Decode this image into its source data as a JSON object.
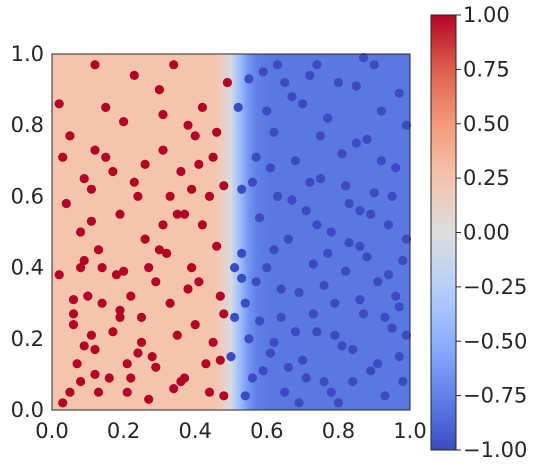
{
  "chart_data": {
    "type": "scatter",
    "title": "",
    "xlabel": "",
    "ylabel": "",
    "xlim": [
      0,
      1
    ],
    "ylim": [
      0,
      1
    ],
    "x_ticks": [
      "0.0",
      "0.2",
      "0.4",
      "0.6",
      "0.8",
      "1.0"
    ],
    "y_ticks": [
      "0.0",
      "0.2",
      "0.4",
      "0.6",
      "0.8",
      "1.0"
    ],
    "tick_values": [
      0,
      0.2,
      0.4,
      0.6,
      0.8,
      1.0
    ],
    "grid": false,
    "background": {
      "kind": "decision-function",
      "boundary_x": 0.5,
      "left_value": 0.25,
      "right_value": -0.8
    },
    "colorbar": {
      "colormap": "coolwarm",
      "min": -1.0,
      "max": 1.0,
      "ticks": [
        "1.00",
        "0.75",
        "0.50",
        "0.25",
        "0.00",
        "−0.25",
        "−0.50",
        "−0.75",
        "−1.00"
      ],
      "tick_values": [
        1.0,
        0.75,
        0.5,
        0.25,
        0.0,
        -0.25,
        -0.5,
        -0.75,
        -1.0
      ]
    },
    "colors": {
      "class_positive": "#b40426",
      "class_negative": "#3b4cc0",
      "background_left": "#f4c5ad",
      "background_right": "#5b7be2",
      "boundary": "#dddddd"
    },
    "series": [
      {
        "label": "1",
        "points": [
          [
            0.02,
            0.86
          ],
          [
            0.03,
            0.71
          ],
          [
            0.05,
            0.05
          ],
          [
            0.06,
            0.31
          ],
          [
            0.06,
            0.24
          ],
          [
            0.08,
            0.5
          ],
          [
            0.08,
            0.08
          ],
          [
            0.08,
            0.4
          ],
          [
            0.09,
            0.42
          ],
          [
            0.09,
            0.65
          ],
          [
            0.11,
            0.53
          ],
          [
            0.11,
            0.21
          ],
          [
            0.12,
            0.97
          ],
          [
            0.12,
            0.17
          ],
          [
            0.12,
            0.1
          ],
          [
            0.13,
            0.05
          ],
          [
            0.14,
            0.4
          ],
          [
            0.15,
            0.85
          ],
          [
            0.17,
            0.67
          ],
          [
            0.19,
            0.28
          ],
          [
            0.19,
            0.26
          ],
          [
            0.2,
            0.39
          ],
          [
            0.21,
            0.05
          ],
          [
            0.22,
            0.09
          ],
          [
            0.23,
            0.64
          ],
          [
            0.24,
            0.6
          ],
          [
            0.25,
            0.19
          ],
          [
            0.26,
            0.48
          ],
          [
            0.27,
            0.03
          ],
          [
            0.28,
            0.15
          ],
          [
            0.29,
            0.12
          ],
          [
            0.3,
            0.9
          ],
          [
            0.31,
            0.73
          ],
          [
            0.31,
            0.52
          ],
          [
            0.32,
            0.44
          ],
          [
            0.33,
            0.3
          ],
          [
            0.34,
            0.06
          ],
          [
            0.35,
            0.21
          ],
          [
            0.36,
            0.67
          ],
          [
            0.37,
            0.55
          ],
          [
            0.38,
            0.8
          ],
          [
            0.39,
            0.4
          ],
          [
            0.4,
            0.24
          ],
          [
            0.41,
            0.69
          ],
          [
            0.42,
            0.85
          ],
          [
            0.43,
            0.13
          ],
          [
            0.44,
            0.6
          ],
          [
            0.46,
            0.46
          ],
          [
            0.46,
            0.78
          ],
          [
            0.47,
            0.32
          ],
          [
            0.48,
            0.04
          ],
          [
            0.49,
            0.92
          ],
          [
            0.2,
            0.81
          ],
          [
            0.22,
            0.32
          ],
          [
            0.15,
            0.71
          ],
          [
            0.04,
            0.58
          ],
          [
            0.17,
            0.22
          ],
          [
            0.23,
            0.94
          ],
          [
            0.27,
            0.4
          ],
          [
            0.33,
            0.6
          ],
          [
            0.37,
            0.09
          ],
          [
            0.41,
            0.36
          ],
          [
            0.45,
            0.19
          ],
          [
            0.13,
            0.45
          ],
          [
            0.07,
            0.13
          ],
          [
            0.1,
            0.32
          ],
          [
            0.16,
            0.09
          ],
          [
            0.24,
            0.16
          ],
          [
            0.29,
            0.36
          ],
          [
            0.35,
            0.55
          ],
          [
            0.42,
            0.52
          ],
          [
            0.48,
            0.27
          ],
          [
            0.05,
            0.77
          ],
          [
            0.11,
            0.62
          ],
          [
            0.18,
            0.38
          ],
          [
            0.26,
            0.69
          ],
          [
            0.31,
            0.83
          ],
          [
            0.38,
            0.34
          ],
          [
            0.44,
            0.05
          ],
          [
            0.47,
            0.14
          ],
          [
            0.02,
            0.38
          ],
          [
            0.06,
            0.27
          ],
          [
            0.09,
            0.18
          ],
          [
            0.14,
            0.3
          ],
          [
            0.19,
            0.55
          ],
          [
            0.25,
            0.26
          ],
          [
            0.3,
            0.45
          ],
          [
            0.36,
            0.08
          ],
          [
            0.4,
            0.77
          ],
          [
            0.45,
            0.71
          ],
          [
            0.48,
            0.63
          ],
          [
            0.03,
            0.02
          ],
          [
            0.12,
            0.73
          ],
          [
            0.21,
            0.13
          ],
          [
            0.34,
            0.97
          ],
          [
            0.39,
            0.62
          ]
        ]
      },
      {
        "label": "-1",
        "points": [
          [
            0.52,
            0.85
          ],
          [
            0.53,
            0.62
          ],
          [
            0.53,
            0.44
          ],
          [
            0.54,
            0.3
          ],
          [
            0.55,
            0.2
          ],
          [
            0.56,
            0.09
          ],
          [
            0.57,
            0.71
          ],
          [
            0.58,
            0.54
          ],
          [
            0.59,
            0.95
          ],
          [
            0.6,
            0.4
          ],
          [
            0.61,
            0.16
          ],
          [
            0.62,
            0.78
          ],
          [
            0.63,
            0.6
          ],
          [
            0.64,
            0.26
          ],
          [
            0.65,
            0.05
          ],
          [
            0.66,
            0.48
          ],
          [
            0.67,
            0.88
          ],
          [
            0.68,
            0.7
          ],
          [
            0.69,
            0.33
          ],
          [
            0.7,
            0.14
          ],
          [
            0.71,
            0.56
          ],
          [
            0.72,
            0.94
          ],
          [
            0.73,
            0.41
          ],
          [
            0.74,
            0.22
          ],
          [
            0.75,
            0.65
          ],
          [
            0.76,
            0.08
          ],
          [
            0.77,
            0.82
          ],
          [
            0.78,
            0.5
          ],
          [
            0.79,
            0.3
          ],
          [
            0.8,
            0.02
          ],
          [
            0.81,
            0.72
          ],
          [
            0.82,
            0.39
          ],
          [
            0.83,
            0.58
          ],
          [
            0.84,
            0.17
          ],
          [
            0.85,
            0.91
          ],
          [
            0.86,
            0.46
          ],
          [
            0.87,
            0.27
          ],
          [
            0.88,
            0.76
          ],
          [
            0.89,
            0.11
          ],
          [
            0.9,
            0.61
          ],
          [
            0.91,
            0.36
          ],
          [
            0.92,
            0.84
          ],
          [
            0.93,
            0.04
          ],
          [
            0.94,
            0.52
          ],
          [
            0.95,
            0.23
          ],
          [
            0.96,
            0.68
          ],
          [
            0.97,
            0.15
          ],
          [
            0.98,
            0.42
          ],
          [
            0.99,
            0.21
          ],
          [
            0.99,
            0.8
          ],
          [
            0.55,
            0.93
          ],
          [
            0.58,
            0.25
          ],
          [
            0.62,
            0.45
          ],
          [
            0.66,
            0.12
          ],
          [
            0.7,
            0.86
          ],
          [
            0.74,
            0.52
          ],
          [
            0.78,
            0.05
          ],
          [
            0.82,
            0.63
          ],
          [
            0.86,
            0.31
          ],
          [
            0.9,
            0.97
          ],
          [
            0.94,
            0.38
          ],
          [
            0.98,
            0.08
          ],
          [
            0.51,
            0.4
          ],
          [
            0.51,
            0.26
          ],
          [
            0.57,
            0.36
          ],
          [
            0.61,
            0.68
          ],
          [
            0.65,
            0.92
          ],
          [
            0.69,
            0.02
          ],
          [
            0.73,
            0.27
          ],
          [
            0.77,
            0.44
          ],
          [
            0.81,
            0.18
          ],
          [
            0.85,
            0.75
          ],
          [
            0.89,
            0.55
          ],
          [
            0.93,
            0.26
          ],
          [
            0.97,
            0.89
          ],
          [
            0.54,
            0.04
          ],
          [
            0.6,
            0.84
          ],
          [
            0.64,
            0.34
          ],
          [
            0.68,
            0.22
          ],
          [
            0.72,
            0.64
          ],
          [
            0.76,
            0.35
          ],
          [
            0.8,
            0.92
          ],
          [
            0.84,
            0.08
          ],
          [
            0.88,
            0.43
          ],
          [
            0.92,
            0.7
          ],
          [
            0.96,
            0.32
          ],
          [
            0.53,
            0.37
          ],
          [
            0.59,
            0.11
          ],
          [
            0.63,
            0.97
          ],
          [
            0.67,
            0.59
          ],
          [
            0.71,
            0.09
          ],
          [
            0.75,
            0.77
          ],
          [
            0.79,
            0.21
          ],
          [
            0.83,
            0.47
          ],
          [
            0.87,
            0.99
          ],
          [
            0.91,
            0.13
          ],
          [
            0.95,
            0.6
          ],
          [
            0.99,
            0.48
          ],
          [
            0.56,
            0.64
          ],
          [
            0.62,
            0.19
          ],
          [
            0.74,
            0.97
          ],
          [
            0.86,
            0.56
          ],
          [
            0.97,
            0.29
          ],
          [
            0.5,
            0.15
          ]
        ]
      }
    ]
  }
}
